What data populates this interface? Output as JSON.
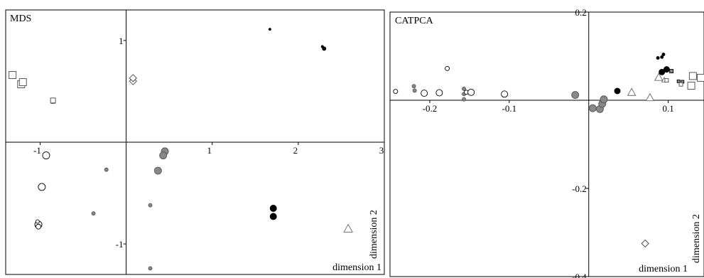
{
  "chart_data": [
    {
      "type": "scatter",
      "title": "MDS",
      "xlabel": "dimension 1",
      "ylabel": "dimension 2",
      "xlim": [
        -1.4,
        3.0
      ],
      "ylim": [
        -1.3,
        1.3
      ],
      "grid": false,
      "x_ticks": [
        {
          "v": -1,
          "label": "-1"
        },
        {
          "v": 1,
          "label": "1"
        },
        {
          "v": 2,
          "label": "2"
        },
        {
          "v": 3,
          "label": "3"
        }
      ],
      "y_ticks": [
        {
          "v": 1,
          "label": "1"
        },
        {
          "v": -1,
          "label": "-1"
        }
      ],
      "points": [
        {
          "x": 1.67,
          "y": 1.11,
          "shape": "circle",
          "fill": "#000000",
          "size": 1.5
        },
        {
          "x": 2.3,
          "y": 0.92,
          "shape": "circle",
          "fill": "#000000",
          "size": 2.5
        },
        {
          "x": 2.28,
          "y": 0.94,
          "shape": "circle",
          "fill": "#000000",
          "size": 1.5
        },
        {
          "x": -1.32,
          "y": 0.66,
          "shape": "square",
          "fill": "#ffffff",
          "size": 5
        },
        {
          "x": -1.22,
          "y": 0.57,
          "shape": "square",
          "fill": "#ffffff",
          "size": 5
        },
        {
          "x": -1.2,
          "y": 0.59,
          "shape": "square",
          "fill": "#ffffff",
          "size": 5
        },
        {
          "x": -0.85,
          "y": 0.4,
          "shape": "square",
          "fill": "#888888",
          "size": 2.5
        },
        {
          "x": -0.85,
          "y": 0.41,
          "shape": "square",
          "fill": "#ffffff",
          "size": 3.5
        },
        {
          "x": 0.08,
          "y": 0.6,
          "shape": "diamond",
          "fill": "#ffffff",
          "size": 5
        },
        {
          "x": 0.08,
          "y": 0.63,
          "shape": "diamond",
          "fill": "#ffffff",
          "size": 5
        },
        {
          "x": -0.93,
          "y": -0.13,
          "shape": "circle",
          "fill": "#ffffff",
          "size": 5
        },
        {
          "x": -0.98,
          "y": -0.44,
          "shape": "circle",
          "fill": "#ffffff",
          "size": 5
        },
        {
          "x": -1.02,
          "y": -0.81,
          "shape": "circle",
          "fill": "#ffffff",
          "size": 5
        },
        {
          "x": -1.02,
          "y": -0.83,
          "shape": "circle",
          "fill": "#ffffff",
          "size": 3.5
        },
        {
          "x": -1.03,
          "y": -0.78,
          "shape": "circle",
          "fill": "#ffffff",
          "size": 2.5
        },
        {
          "x": -0.23,
          "y": -0.27,
          "shape": "circle",
          "fill": "#888888",
          "size": 2.5
        },
        {
          "x": -0.38,
          "y": -0.7,
          "shape": "circle",
          "fill": "#888888",
          "size": 2.5
        },
        {
          "x": 0.45,
          "y": -0.09,
          "shape": "circle",
          "fill": "#888888",
          "size": 5
        },
        {
          "x": 0.43,
          "y": -0.13,
          "shape": "circle",
          "fill": "#888888",
          "size": 5
        },
        {
          "x": 0.37,
          "y": -0.28,
          "shape": "circle",
          "fill": "#888888",
          "size": 5
        },
        {
          "x": 0.28,
          "y": -0.62,
          "shape": "circle",
          "fill": "#888888",
          "size": 2.5
        },
        {
          "x": 0.28,
          "y": -1.24,
          "shape": "circle",
          "fill": "#888888",
          "size": 2.5
        },
        {
          "x": 1.71,
          "y": -0.65,
          "shape": "circle",
          "fill": "#000000",
          "size": 4.5
        },
        {
          "x": 1.71,
          "y": -0.73,
          "shape": "circle",
          "fill": "#000000",
          "size": 4.5
        },
        {
          "x": 2.58,
          "y": -0.85,
          "shape": "triangle",
          "fill": "#ffffff",
          "size": 6
        }
      ]
    },
    {
      "type": "scatter",
      "title": "CATPCA",
      "xlabel": "dimension 1",
      "ylabel": "dimension 2",
      "xlim": [
        -0.25,
        0.145
      ],
      "ylim": [
        -0.4,
        0.2
      ],
      "grid": false,
      "x_ticks": [
        {
          "v": -0.2,
          "label": "-0.2"
        },
        {
          "v": -0.1,
          "label": "-0.1"
        },
        {
          "v": 0.1,
          "label": "0.1"
        }
      ],
      "y_ticks": [
        {
          "v": 0.2,
          "label": "0.2"
        },
        {
          "v": -0.2,
          "label": "-0.2"
        },
        {
          "v": -0.4,
          "label": "-0.4"
        }
      ],
      "points": [
        {
          "x": -0.243,
          "y": 0.02,
          "shape": "circle",
          "fill": "#ffffff",
          "size": 3
        },
        {
          "x": -0.22,
          "y": 0.032,
          "shape": "circle",
          "fill": "#888888",
          "size": 2.5
        },
        {
          "x": -0.219,
          "y": 0.022,
          "shape": "circle",
          "fill": "#888888",
          "size": 2.5
        },
        {
          "x": -0.207,
          "y": 0.016,
          "shape": "circle",
          "fill": "#ffffff",
          "size": 4.5
        },
        {
          "x": -0.188,
          "y": 0.017,
          "shape": "circle",
          "fill": "#ffffff",
          "size": 4.5
        },
        {
          "x": -0.178,
          "y": 0.072,
          "shape": "circle",
          "fill": "#ffffff",
          "size": 3
        },
        {
          "x": -0.157,
          "y": 0.026,
          "shape": "circle",
          "fill": "#888888",
          "size": 2.5
        },
        {
          "x": -0.157,
          "y": 0.014,
          "shape": "circle",
          "fill": "#888888",
          "size": 2.5
        },
        {
          "x": -0.157,
          "y": 0.002,
          "shape": "circle",
          "fill": "#888888",
          "size": 2.5
        },
        {
          "x": -0.154,
          "y": 0.018,
          "shape": "circle",
          "fill": "#ffffff",
          "size": 3
        },
        {
          "x": -0.148,
          "y": 0.018,
          "shape": "circle",
          "fill": "#ffffff",
          "size": 4.5
        },
        {
          "x": -0.106,
          "y": 0.014,
          "shape": "circle",
          "fill": "#ffffff",
          "size": 4.5
        },
        {
          "x": -0.017,
          "y": 0.012,
          "shape": "circle",
          "fill": "#888888",
          "size": 5
        },
        {
          "x": 0.005,
          "y": -0.018,
          "shape": "circle",
          "fill": "#888888",
          "size": 5
        },
        {
          "x": 0.014,
          "y": -0.02,
          "shape": "circle",
          "fill": "#888888",
          "size": 5
        },
        {
          "x": 0.017,
          "y": -0.008,
          "shape": "circle",
          "fill": "#888888",
          "size": 5
        },
        {
          "x": 0.019,
          "y": 0.002,
          "shape": "circle",
          "fill": "#888888",
          "size": 5
        },
        {
          "x": 0.036,
          "y": 0.021,
          "shape": "circle",
          "fill": "#000000",
          "size": 4
        },
        {
          "x": 0.054,
          "y": 0.018,
          "shape": "triangle",
          "fill": "#ffffff",
          "size": 5.5
        },
        {
          "x": 0.077,
          "y": 0.006,
          "shape": "triangle",
          "fill": "#ffffff",
          "size": 5.5
        },
        {
          "x": 0.088,
          "y": 0.052,
          "shape": "triangle",
          "fill": "#ffffff",
          "size": 5.5
        },
        {
          "x": 0.095,
          "y": 0.046,
          "shape": "triangle",
          "fill": "#ffffff",
          "size": 3.5
        },
        {
          "x": 0.087,
          "y": 0.096,
          "shape": "circle",
          "fill": "#000000",
          "size": 2
        },
        {
          "x": 0.092,
          "y": 0.098,
          "shape": "circle",
          "fill": "#000000",
          "size": 2
        },
        {
          "x": 0.094,
          "y": 0.104,
          "shape": "circle",
          "fill": "#000000",
          "size": 2
        },
        {
          "x": 0.092,
          "y": 0.064,
          "shape": "circle",
          "fill": "#000000",
          "size": 4
        },
        {
          "x": 0.098,
          "y": 0.07,
          "shape": "circle",
          "fill": "#000000",
          "size": 4
        },
        {
          "x": 0.104,
          "y": 0.066,
          "shape": "square",
          "fill": "#888888",
          "size": 2.5
        },
        {
          "x": 0.098,
          "y": 0.045,
          "shape": "square",
          "fill": "#ffffff",
          "size": 2.5
        },
        {
          "x": 0.113,
          "y": 0.043,
          "shape": "square",
          "fill": "#888888",
          "size": 2
        },
        {
          "x": 0.118,
          "y": 0.042,
          "shape": "square",
          "fill": "#888888",
          "size": 2
        },
        {
          "x": 0.116,
          "y": 0.036,
          "shape": "square",
          "fill": "#ffffff",
          "size": 2.5
        },
        {
          "x": 0.131,
          "y": 0.055,
          "shape": "square",
          "fill": "#ffffff",
          "size": 5
        },
        {
          "x": 0.141,
          "y": 0.051,
          "shape": "square",
          "fill": "#ffffff",
          "size": 5
        },
        {
          "x": 0.129,
          "y": 0.033,
          "shape": "square",
          "fill": "#ffffff",
          "size": 5
        },
        {
          "x": 0.071,
          "y": -0.325,
          "shape": "diamond",
          "fill": "#ffffff",
          "size": 5
        }
      ]
    }
  ]
}
